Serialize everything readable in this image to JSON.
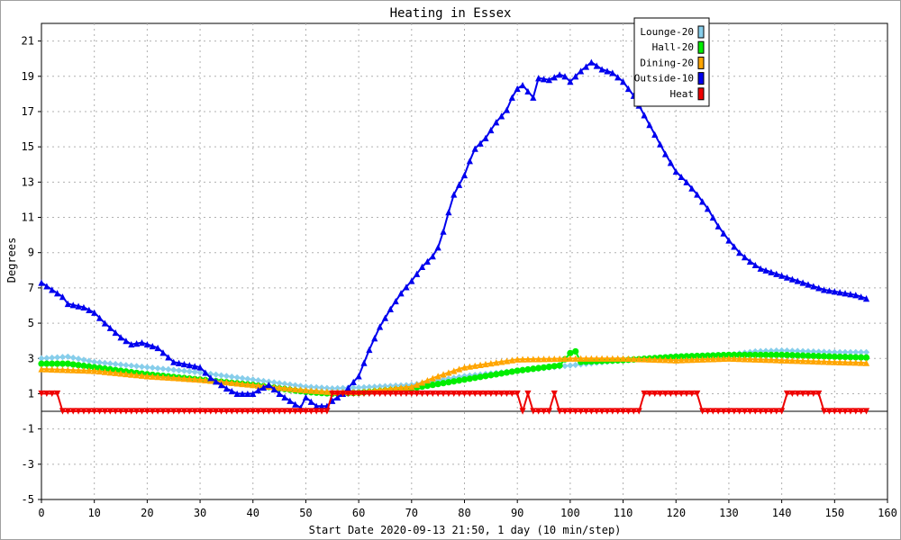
{
  "chart_data": {
    "type": "line",
    "title": "Heating in Essex",
    "xlabel": "Start Date 2020-09-13 21:50, 1 day (10 min/step)",
    "ylabel": "Degrees",
    "xlim": [
      0,
      160
    ],
    "ylim": [
      -5,
      22
    ],
    "x_ticks": [
      0,
      10,
      20,
      30,
      40,
      50,
      60,
      70,
      80,
      90,
      100,
      110,
      120,
      130,
      140,
      150,
      160
    ],
    "y_ticks": [
      -5,
      -3,
      -1,
      1,
      3,
      5,
      7,
      9,
      11,
      13,
      15,
      17,
      19,
      21
    ],
    "grid": true,
    "legend_position": "top-right",
    "series": [
      {
        "name": "Lounge-20",
        "color": "#87ceeb",
        "marker": "diamond",
        "points": [
          [
            0,
            3.0
          ],
          [
            5,
            3.1
          ],
          [
            10,
            2.8
          ],
          [
            20,
            2.5
          ],
          [
            30,
            2.2
          ],
          [
            40,
            1.8
          ],
          [
            50,
            1.4
          ],
          [
            55,
            1.3
          ],
          [
            60,
            1.35
          ],
          [
            70,
            1.5
          ],
          [
            80,
            2.0
          ],
          [
            90,
            2.3
          ],
          [
            100,
            2.6
          ],
          [
            110,
            2.9
          ],
          [
            120,
            3.1
          ],
          [
            130,
            3.2
          ],
          [
            135,
            3.4
          ],
          [
            140,
            3.45
          ],
          [
            150,
            3.35
          ],
          [
            156,
            3.35
          ]
        ]
      },
      {
        "name": "Hall-20",
        "color": "#00ee00",
        "marker": "circle",
        "points": [
          [
            0,
            2.7
          ],
          [
            5,
            2.7
          ],
          [
            10,
            2.5
          ],
          [
            20,
            2.1
          ],
          [
            30,
            1.8
          ],
          [
            40,
            1.5
          ],
          [
            50,
            1.1
          ],
          [
            55,
            1.0
          ],
          [
            60,
            1.05
          ],
          [
            70,
            1.3
          ],
          [
            80,
            1.8
          ],
          [
            90,
            2.3
          ],
          [
            98,
            2.6
          ],
          [
            100,
            3.3
          ],
          [
            101,
            3.4
          ],
          [
            102,
            2.8
          ],
          [
            110,
            2.9
          ],
          [
            120,
            3.1
          ],
          [
            130,
            3.2
          ],
          [
            140,
            3.2
          ],
          [
            150,
            3.1
          ],
          [
            156,
            3.05
          ]
        ]
      },
      {
        "name": "Dining-20",
        "color": "#ffa500",
        "marker": "triangle",
        "points": [
          [
            0,
            2.4
          ],
          [
            10,
            2.3
          ],
          [
            20,
            2.0
          ],
          [
            30,
            1.8
          ],
          [
            40,
            1.5
          ],
          [
            50,
            1.2
          ],
          [
            55,
            1.1
          ],
          [
            60,
            1.1
          ],
          [
            70,
            1.4
          ],
          [
            75,
            2.0
          ],
          [
            80,
            2.5
          ],
          [
            90,
            2.95
          ],
          [
            100,
            3.0
          ],
          [
            110,
            3.0
          ],
          [
            120,
            2.9
          ],
          [
            130,
            3.0
          ],
          [
            140,
            2.9
          ],
          [
            150,
            2.8
          ],
          [
            156,
            2.75
          ]
        ]
      },
      {
        "name": "Outside-10",
        "color": "#0000ee",
        "marker": "triangle",
        "points": [
          [
            0,
            7.3
          ],
          [
            2,
            6.9
          ],
          [
            4,
            6.5
          ],
          [
            5,
            6.1
          ],
          [
            8,
            5.9
          ],
          [
            10,
            5.6
          ],
          [
            12,
            5.0
          ],
          [
            15,
            4.2
          ],
          [
            17,
            3.8
          ],
          [
            19,
            3.9
          ],
          [
            22,
            3.6
          ],
          [
            25,
            2.8
          ],
          [
            30,
            2.5
          ],
          [
            32,
            1.9
          ],
          [
            35,
            1.3
          ],
          [
            37,
            1.0
          ],
          [
            40,
            1.0
          ],
          [
            41,
            1.2
          ],
          [
            43,
            1.5
          ],
          [
            45,
            1.0
          ],
          [
            47,
            0.6
          ],
          [
            49,
            0.2
          ],
          [
            50,
            0.8
          ],
          [
            52,
            0.3
          ],
          [
            54,
            0.3
          ],
          [
            55,
            0.6
          ],
          [
            57,
            1.0
          ],
          [
            60,
            2.0
          ],
          [
            62,
            3.5
          ],
          [
            64,
            4.8
          ],
          [
            66,
            5.8
          ],
          [
            68,
            6.7
          ],
          [
            70,
            7.4
          ],
          [
            72,
            8.2
          ],
          [
            74,
            8.8
          ],
          [
            75,
            9.3
          ],
          [
            76,
            10.2
          ],
          [
            77,
            11.3
          ],
          [
            78,
            12.3
          ],
          [
            80,
            13.4
          ],
          [
            81,
            14.2
          ],
          [
            82,
            14.9
          ],
          [
            84,
            15.5
          ],
          [
            86,
            16.4
          ],
          [
            88,
            17.1
          ],
          [
            89,
            17.8
          ],
          [
            90,
            18.3
          ],
          [
            91,
            18.5
          ],
          [
            93,
            17.8
          ],
          [
            94,
            18.9
          ],
          [
            96,
            18.8
          ],
          [
            98,
            19.1
          ],
          [
            99,
            19.0
          ],
          [
            100,
            18.7
          ],
          [
            101,
            19.0
          ],
          [
            102,
            19.3
          ],
          [
            104,
            19.8
          ],
          [
            106,
            19.4
          ],
          [
            108,
            19.2
          ],
          [
            110,
            18.7
          ],
          [
            112,
            17.9
          ],
          [
            114,
            16.8
          ],
          [
            116,
            15.7
          ],
          [
            118,
            14.6
          ],
          [
            120,
            13.6
          ],
          [
            122,
            13.0
          ],
          [
            124,
            12.3
          ],
          [
            126,
            11.5
          ],
          [
            128,
            10.5
          ],
          [
            130,
            9.7
          ],
          [
            132,
            9.0
          ],
          [
            134,
            8.5
          ],
          [
            136,
            8.1
          ],
          [
            138,
            7.9
          ],
          [
            140,
            7.7
          ],
          [
            142,
            7.5
          ],
          [
            144,
            7.3
          ],
          [
            146,
            7.1
          ],
          [
            148,
            6.9
          ],
          [
            150,
            6.8
          ],
          [
            152,
            6.7
          ],
          [
            154,
            6.6
          ],
          [
            156,
            6.4
          ]
        ]
      },
      {
        "name": "Heat",
        "color": "#ee0000",
        "marker": "triangle-down",
        "points": [
          [
            0,
            1
          ],
          [
            3,
            1
          ],
          [
            4,
            0
          ],
          [
            54,
            0
          ],
          [
            55,
            1
          ],
          [
            90,
            1
          ],
          [
            91,
            0
          ],
          [
            92,
            1
          ],
          [
            93,
            0
          ],
          [
            96,
            0
          ],
          [
            97,
            1
          ],
          [
            98,
            0
          ],
          [
            113,
            0
          ],
          [
            114,
            1
          ],
          [
            124,
            1
          ],
          [
            125,
            0
          ],
          [
            140,
            0
          ],
          [
            141,
            1
          ],
          [
            147,
            1
          ],
          [
            148,
            0
          ],
          [
            156,
            0
          ]
        ]
      }
    ]
  }
}
